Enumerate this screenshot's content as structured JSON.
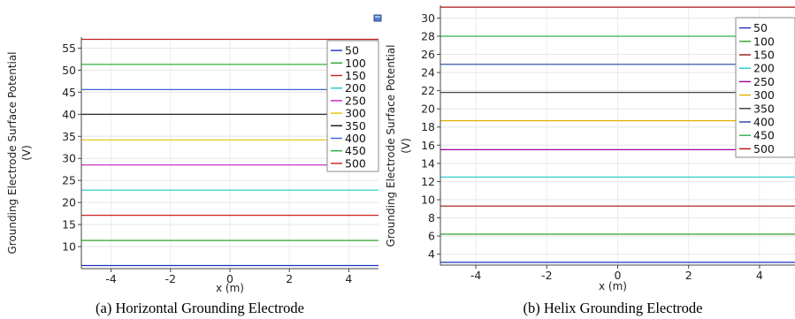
{
  "chart_data": [
    {
      "type": "line",
      "caption": "(a)  Horizontal Grounding Electrode",
      "xlabel": "x (m)",
      "ylabel_line1": "Grounding Electrode Surface Potential",
      "ylabel_line2": "(V)",
      "xlim": [
        -5,
        5
      ],
      "ylim": [
        5,
        57.5
      ],
      "xticks": [
        -4,
        -2,
        0,
        2,
        4
      ],
      "yticks": [
        10,
        15,
        20,
        25,
        30,
        35,
        40,
        45,
        50,
        55
      ],
      "grid": true,
      "legend_position": "top-right",
      "series": [
        {
          "name": "50",
          "color": "#1f2fbf",
          "values": [
            5.7,
            5.7
          ]
        },
        {
          "name": "100",
          "color": "#2fa02f",
          "values": [
            11.4,
            11.4
          ]
        },
        {
          "name": "150",
          "color": "#cc2020",
          "values": [
            17.1,
            17.1
          ]
        },
        {
          "name": "200",
          "color": "#20c8c8",
          "values": [
            22.8,
            22.8
          ]
        },
        {
          "name": "250",
          "color": "#c020c0",
          "values": [
            28.5,
            28.5
          ]
        },
        {
          "name": "300",
          "color": "#e8c000",
          "values": [
            34.2,
            34.2
          ]
        },
        {
          "name": "350",
          "color": "#111111",
          "values": [
            40.0,
            40.0
          ]
        },
        {
          "name": "400",
          "color": "#4060d0",
          "values": [
            45.6,
            45.6
          ]
        },
        {
          "name": "450",
          "color": "#30b040",
          "values": [
            51.3,
            51.3
          ]
        },
        {
          "name": "500",
          "color": "#c02020",
          "values": [
            57.0,
            57.0
          ]
        }
      ],
      "x": [
        -5,
        5
      ]
    },
    {
      "type": "line",
      "caption": "(b) Helix Grounding Electrode",
      "xlabel": "x (m)",
      "xlim": [
        -5,
        5
      ],
      "ylim": [
        2.8,
        31.4
      ],
      "xticks": [
        -4,
        -2,
        0,
        2,
        4
      ],
      "yticks": [
        4,
        6,
        8,
        10,
        12,
        14,
        16,
        18,
        20,
        22,
        24,
        26,
        28,
        30
      ],
      "grid": true,
      "legend_position": "top-right",
      "series": [
        {
          "name": "50",
          "color": "#1f2fbf",
          "values": [
            3.1,
            3.1
          ]
        },
        {
          "name": "100",
          "color": "#2fa02f",
          "values": [
            6.2,
            6.2
          ]
        },
        {
          "name": "150",
          "color": "#a01010",
          "values": [
            9.3,
            9.3
          ]
        },
        {
          "name": "200",
          "color": "#20c8c8",
          "values": [
            12.5,
            12.5
          ]
        },
        {
          "name": "250",
          "color": "#a000a0",
          "values": [
            15.5,
            15.5
          ]
        },
        {
          "name": "300",
          "color": "#e0b000",
          "values": [
            18.7,
            18.7
          ]
        },
        {
          "name": "350",
          "color": "#333333",
          "values": [
            21.8,
            21.8
          ]
        },
        {
          "name": "400",
          "color": "#1f3fa0",
          "values": [
            24.9,
            24.9
          ]
        },
        {
          "name": "450",
          "color": "#30b050",
          "values": [
            28.0,
            28.0
          ]
        },
        {
          "name": "500",
          "color": "#b01010",
          "values": [
            31.2,
            31.2
          ]
        }
      ],
      "x": [
        -5,
        5
      ]
    }
  ],
  "widgets": {
    "panel_a_corner_icon": "window-icon"
  }
}
